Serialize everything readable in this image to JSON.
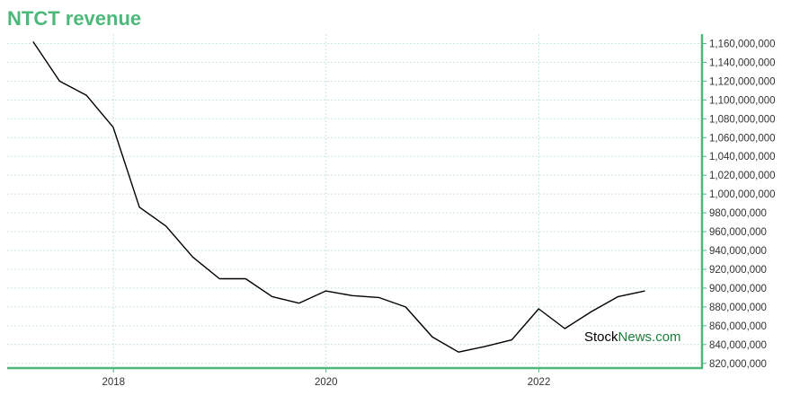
{
  "chart_data": {
    "type": "line",
    "title": "NTCT revenue",
    "xlabel": "",
    "ylabel": "",
    "x_ticks": [
      "2018",
      "2020",
      "2022"
    ],
    "y_ticks": [
      "820,000,000",
      "840,000,000",
      "860,000,000",
      "880,000,000",
      "900,000,000",
      "920,000,000",
      "940,000,000",
      "960,000,000",
      "980,000,000",
      "1,000,000,000",
      "1,020,000,000",
      "1,040,000,000",
      "1,060,000,000",
      "1,080,000,000",
      "1,100,000,000",
      "1,120,000,000",
      "1,140,000,000",
      "1,160,000,000"
    ],
    "xlim": [
      "2017-01-01",
      "2023-07-15"
    ],
    "ylim": [
      815000000,
      1170000000
    ],
    "grid": true,
    "series": [
      {
        "color": "#000000",
        "points": [
          {
            "x": "2017-03-31",
            "y": 1162000000
          },
          {
            "x": "2017-06-30",
            "y": 1120000000
          },
          {
            "x": "2017-09-30",
            "y": 1105000000
          },
          {
            "x": "2017-12-31",
            "y": 1071000000
          },
          {
            "x": "2018-03-31",
            "y": 986000000
          },
          {
            "x": "2018-06-30",
            "y": 966000000
          },
          {
            "x": "2018-09-30",
            "y": 933000000
          },
          {
            "x": "2018-12-31",
            "y": 910000000
          },
          {
            "x": "2019-03-31",
            "y": 910000000
          },
          {
            "x": "2019-06-30",
            "y": 891000000
          },
          {
            "x": "2019-09-30",
            "y": 884000000
          },
          {
            "x": "2019-12-31",
            "y": 897000000
          },
          {
            "x": "2020-03-31",
            "y": 892000000
          },
          {
            "x": "2020-06-30",
            "y": 890000000
          },
          {
            "x": "2020-09-30",
            "y": 880000000
          },
          {
            "x": "2020-12-31",
            "y": 848000000
          },
          {
            "x": "2021-03-31",
            "y": 832000000
          },
          {
            "x": "2021-06-30",
            "y": 838000000
          },
          {
            "x": "2021-09-30",
            "y": 845000000
          },
          {
            "x": "2021-12-31",
            "y": 878000000
          },
          {
            "x": "2022-03-31",
            "y": 857000000
          },
          {
            "x": "2022-06-30",
            "y": 875000000
          },
          {
            "x": "2022-09-30",
            "y": 891000000
          },
          {
            "x": "2022-12-31",
            "y": 897000000
          }
        ]
      }
    ]
  },
  "watermark": {
    "part1": "Stock",
    "part2": "News.com"
  },
  "colors": {
    "title": "#4cb87a",
    "axis": "#4cb87a",
    "grid": "#c9e6d5",
    "line": "#000000",
    "watermark_stock": "#000000",
    "watermark_news": "#1a7f37"
  }
}
